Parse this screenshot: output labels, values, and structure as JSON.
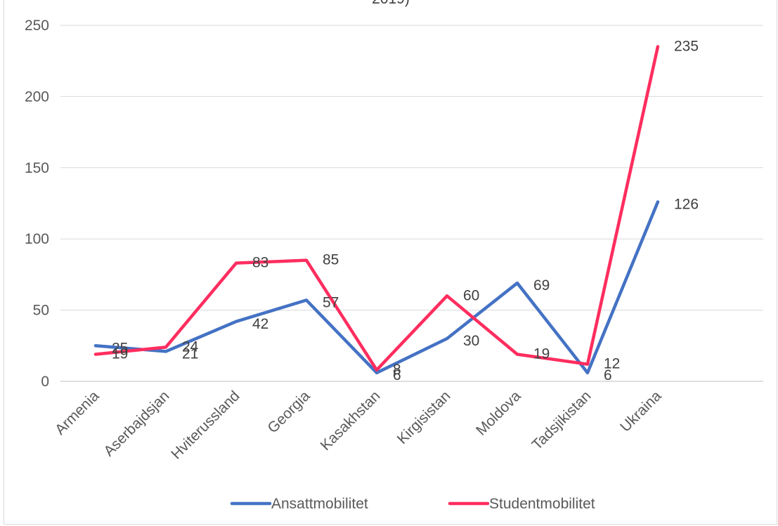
{
  "chart_data": {
    "type": "line",
    "title": "2019)",
    "categories": [
      "Armenia",
      "Aserbajdsjan",
      "Hviterussland",
      "Georgia",
      "Kasakhstan",
      "Kirgisistan",
      "Moldova",
      "Tadsjikistan",
      "Ukraina"
    ],
    "series": [
      {
        "name": "Ansattmobilitet",
        "values": [
          25,
          21,
          42,
          57,
          6,
          30,
          69,
          6,
          126
        ],
        "color": "#4472c4"
      },
      {
        "name": "Studentmobilitet",
        "values": [
          19,
          24,
          83,
          85,
          8,
          60,
          19,
          12,
          235
        ],
        "color": "#ff2d5f"
      }
    ],
    "ylim": [
      0,
      250
    ],
    "yticks": [
      0,
      50,
      100,
      150,
      200,
      250
    ],
    "grid": true,
    "legend": "bottom"
  }
}
